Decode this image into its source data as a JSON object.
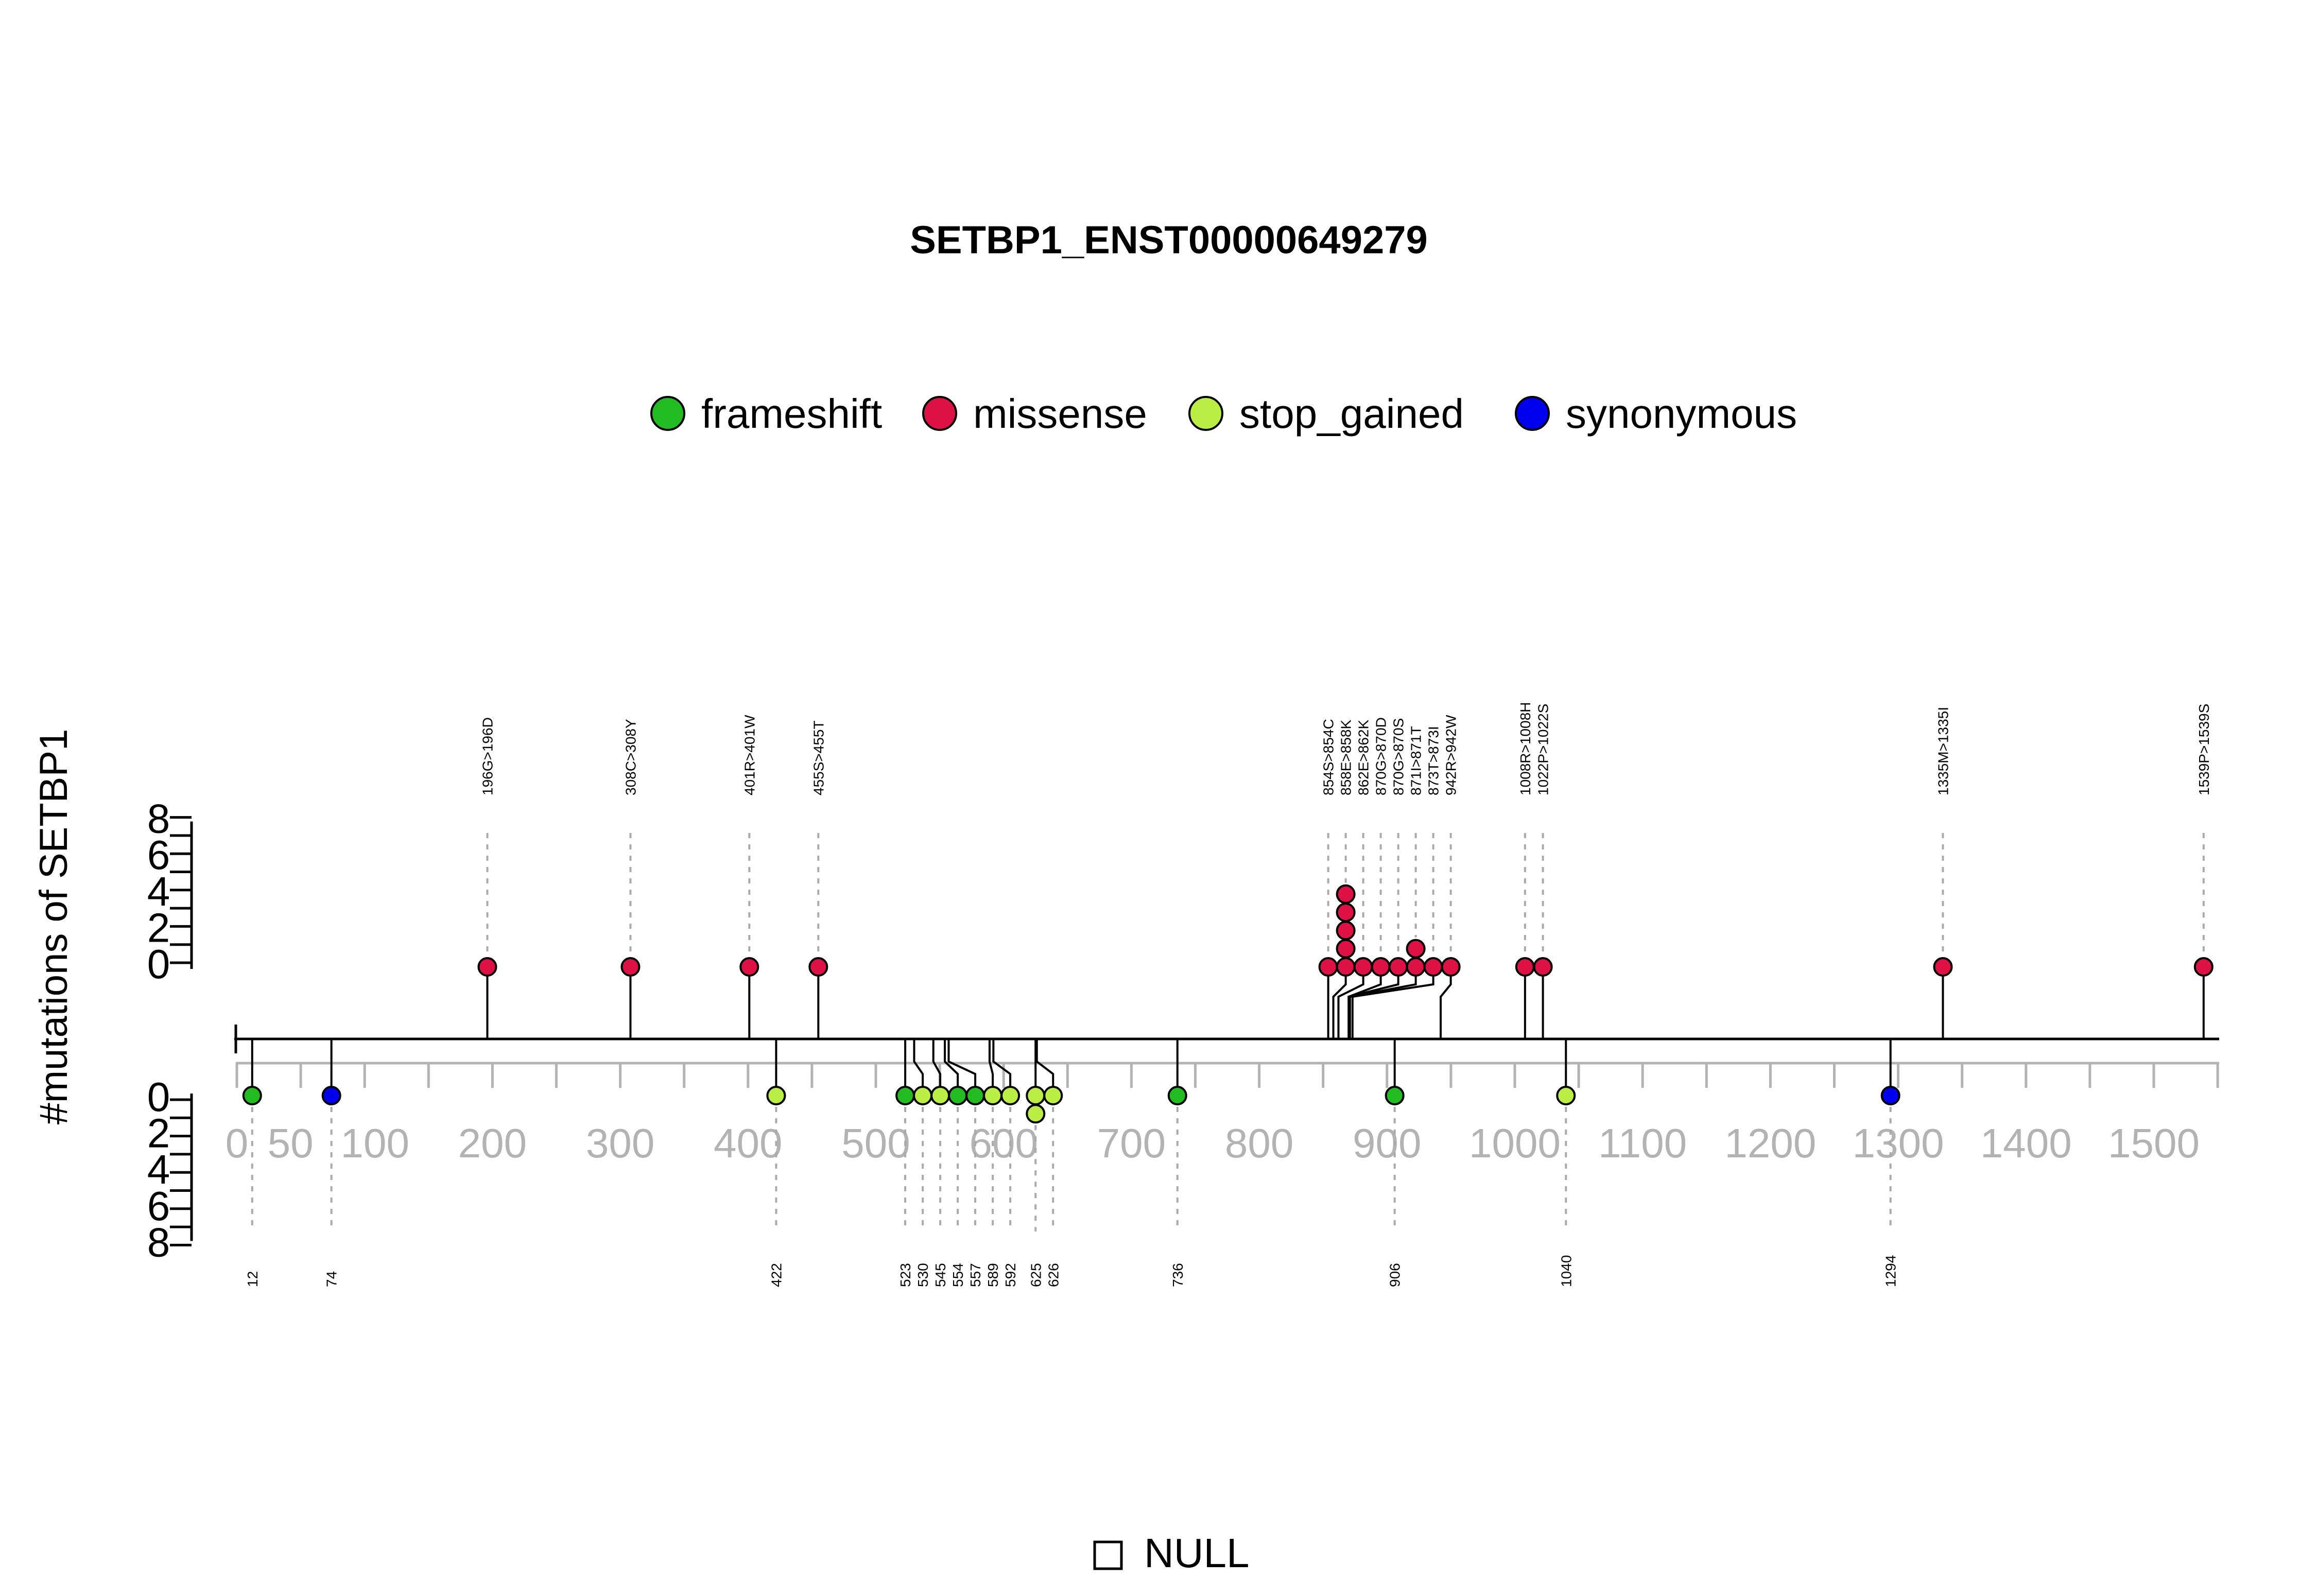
{
  "chart_data": {
    "type": "lollipop",
    "title": "SETBP1_ENST00000649279",
    "ylabel": "#mutations of SETBP1",
    "xlim": [
      0,
      1550
    ],
    "x_ticks": [
      0,
      50,
      100,
      200,
      300,
      400,
      500,
      600,
      700,
      800,
      900,
      1000,
      1100,
      1200,
      1300,
      1400,
      1500
    ],
    "y_ticks": [
      0,
      2,
      4,
      6,
      8
    ],
    "ylim": [
      0,
      8
    ],
    "legend": {
      "position": "top",
      "entries": [
        {
          "name": "frameshift",
          "color": "#22bb22"
        },
        {
          "name": "missense",
          "color": "#dd1144"
        },
        {
          "name": "stop_gained",
          "color": "#bbee44"
        },
        {
          "name": "synonymous",
          "color": "#0000ee"
        }
      ]
    },
    "domain_legend": {
      "name": "NULL"
    },
    "top_mutations": [
      {
        "label": "196G>196D",
        "pos": 196,
        "type": "missense",
        "count": 1
      },
      {
        "label": "308C>308Y",
        "pos": 308,
        "type": "missense",
        "count": 1
      },
      {
        "label": "401R>401W",
        "pos": 401,
        "type": "missense",
        "count": 1
      },
      {
        "label": "455S>455T",
        "pos": 455,
        "type": "missense",
        "count": 1
      },
      {
        "label": "854S>854C",
        "pos": 854,
        "type": "missense",
        "count": 1
      },
      {
        "label": "858E>858K",
        "pos": 858,
        "type": "missense",
        "count": 5
      },
      {
        "label": "862E>862K",
        "pos": 862,
        "type": "missense",
        "count": 1
      },
      {
        "label": "870G>870D",
        "pos": 870,
        "type": "missense",
        "count": 1
      },
      {
        "label": "870G>870S",
        "pos": 870,
        "type": "missense",
        "count": 1
      },
      {
        "label": "871I>871T",
        "pos": 871,
        "type": "missense",
        "count": 2
      },
      {
        "label": "873T>873I",
        "pos": 873,
        "type": "missense",
        "count": 1
      },
      {
        "label": "942R>942W",
        "pos": 942,
        "type": "missense",
        "count": 1
      },
      {
        "label": "1008R>1008H",
        "pos": 1008,
        "type": "missense",
        "count": 1
      },
      {
        "label": "1022P>1022S",
        "pos": 1022,
        "type": "missense",
        "count": 1
      },
      {
        "label": "1335M>1335I",
        "pos": 1335,
        "type": "missense",
        "count": 1
      },
      {
        "label": "1539P>1539S",
        "pos": 1539,
        "type": "missense",
        "count": 1
      }
    ],
    "bottom_mutations": [
      {
        "label": "12",
        "pos": 12,
        "type": "frameshift",
        "count": 1
      },
      {
        "label": "74",
        "pos": 74,
        "type": "synonymous",
        "count": 1
      },
      {
        "label": "422",
        "pos": 422,
        "type": "stop_gained",
        "count": 1
      },
      {
        "label": "523",
        "pos": 523,
        "type": "frameshift",
        "count": 1
      },
      {
        "label": "530",
        "pos": 530,
        "type": "stop_gained",
        "count": 1
      },
      {
        "label": "545",
        "pos": 545,
        "type": "stop_gained",
        "count": 1
      },
      {
        "label": "554",
        "pos": 554,
        "type": "frameshift",
        "count": 1
      },
      {
        "label": "557",
        "pos": 557,
        "type": "frameshift",
        "count": 1
      },
      {
        "label": "589",
        "pos": 589,
        "type": "stop_gained",
        "count": 1
      },
      {
        "label": "592",
        "pos": 592,
        "type": "stop_gained",
        "count": 1
      },
      {
        "label": "625",
        "pos": 625,
        "type": "stop_gained",
        "count": 2
      },
      {
        "label": "626",
        "pos": 626,
        "type": "stop_gained",
        "count": 1
      },
      {
        "label": "736",
        "pos": 736,
        "type": "frameshift",
        "count": 1
      },
      {
        "label": "906",
        "pos": 906,
        "type": "frameshift",
        "count": 1
      },
      {
        "label": "1040",
        "pos": 1040,
        "type": "stop_gained",
        "count": 1
      },
      {
        "label": "1294",
        "pos": 1294,
        "type": "synonymous",
        "count": 1
      }
    ]
  }
}
